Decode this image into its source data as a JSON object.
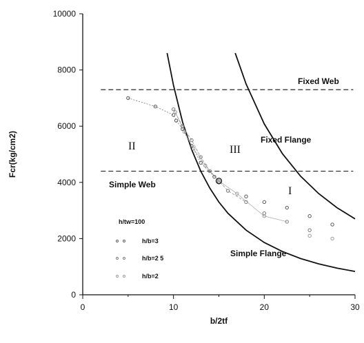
{
  "chart_data": {
    "type": "line",
    "xlabel": "b/2tf",
    "ylabel": "Fcr(kg/cm2)",
    "xlim": [
      0,
      30
    ],
    "ylim": [
      0,
      10000
    ],
    "x_ticks": [
      "0",
      "10",
      "20",
      "30"
    ],
    "y_ticks": [
      "0",
      "2000",
      "4000",
      "6000",
      "8000",
      "10000"
    ],
    "grid": false,
    "series": [
      {
        "name": "Simple Flange",
        "style": "solid",
        "color": "#111111",
        "x": [
          9.3,
          10,
          11,
          12,
          13,
          14,
          15,
          16,
          18,
          20,
          22,
          24,
          26,
          28,
          30
        ],
        "y": [
          8600,
          7450,
          6150,
          5170,
          4400,
          3800,
          3300,
          2900,
          2300,
          1860,
          1540,
          1290,
          1100,
          950,
          830
        ]
      },
      {
        "name": "Fixed Flange",
        "style": "solid",
        "color": "#111111",
        "x": [
          16.8,
          18,
          20,
          22,
          24,
          26,
          28,
          30
        ],
        "y": [
          8600,
          7500,
          6080,
          5020,
          4220,
          3600,
          3100,
          2700
        ]
      },
      {
        "name": "Fixed Web",
        "style": "dashed",
        "color": "#111111",
        "x": [
          2,
          29.8
        ],
        "y": [
          7300,
          7300
        ]
      },
      {
        "name": "Simple Web",
        "style": "dashed",
        "color": "#111111",
        "x": [
          2,
          29.8
        ],
        "y": [
          4400,
          4400
        ]
      }
    ],
    "test_groups": [
      {
        "name": "h/b=3",
        "color": "#555555",
        "x": [
          5,
          8,
          10,
          10.3,
          11,
          12,
          13,
          14.5,
          15,
          18,
          20,
          22.5,
          25,
          27.5
        ],
        "y": [
          7000,
          6700,
          6400,
          6200,
          5900,
          5300,
          4700,
          4200,
          4000,
          3500,
          3300,
          3100,
          2800,
          2500
        ]
      },
      {
        "name": "h/b=2.5",
        "color": "#777777",
        "x": [
          10,
          11,
          12,
          13,
          14,
          15,
          16,
          18,
          20,
          22.5,
          25
        ],
        "y": [
          6600,
          6000,
          5500,
          4900,
          4400,
          4050,
          3700,
          3300,
          2900,
          2600,
          2300
        ]
      },
      {
        "name": "h/b=2",
        "color": "#999999",
        "x": [
          10.2,
          11.2,
          12.2,
          13.5,
          15,
          17,
          20,
          22.5,
          25,
          27.5
        ],
        "y": [
          6500,
          5800,
          5200,
          4600,
          4050,
          3600,
          2800,
          2600,
          2100,
          2000
        ]
      }
    ],
    "annotations": {
      "fixed_web": "Fixed Web",
      "fixed_flange": "Fixed Flange",
      "simple_web": "Simple Web",
      "simple_flange": "Simple Flange",
      "region_2": "II",
      "region_3": "III",
      "region_1": "I",
      "legend_title": "h/tw=100",
      "legend_h3": "h/b=3",
      "legend_h25": "h/b=2 5",
      "legend_h2": "h/b=2"
    }
  }
}
